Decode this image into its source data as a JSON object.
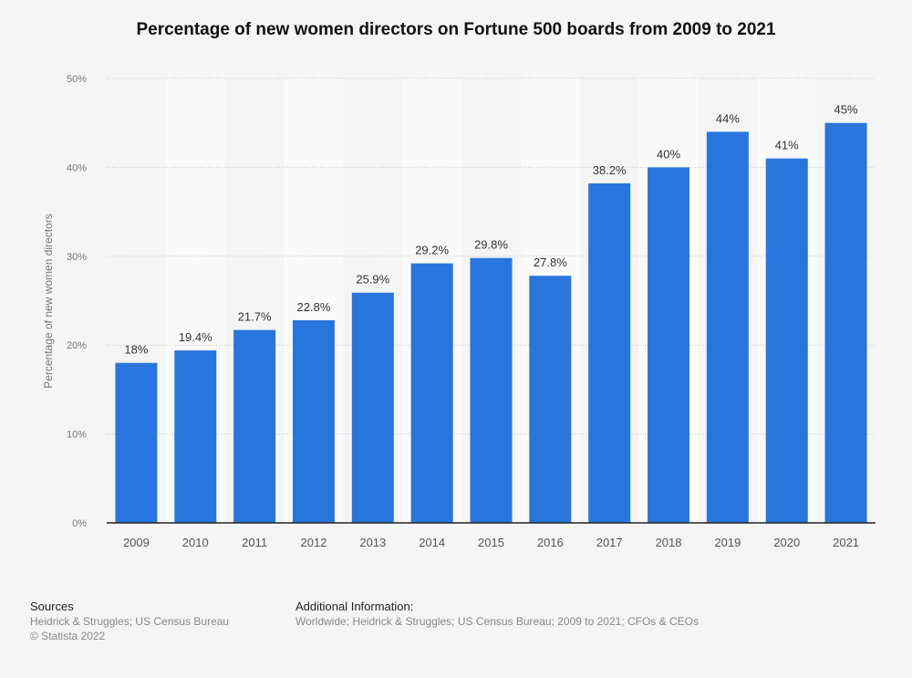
{
  "chart_data": {
    "type": "bar",
    "title": "Percentage of new women directors on Fortune 500 boards from 2009 to 2021",
    "xlabel": "",
    "ylabel": "Percentage of new women directors",
    "categories": [
      "2009",
      "2010",
      "2011",
      "2012",
      "2013",
      "2014",
      "2015",
      "2016",
      "2017",
      "2018",
      "2019",
      "2020",
      "2021"
    ],
    "values": [
      18,
      19.4,
      21.7,
      22.8,
      25.9,
      29.2,
      29.8,
      27.8,
      38.2,
      40,
      44,
      41,
      45
    ],
    "data_labels": [
      "18%",
      "19.4%",
      "21.7%",
      "22.8%",
      "25.9%",
      "29.2%",
      "29.8%",
      "27.8%",
      "38.2%",
      "40%",
      "44%",
      "41%",
      "45%"
    ],
    "ylim": [
      0,
      50
    ],
    "yticks": [
      0,
      10,
      20,
      30,
      40,
      50
    ],
    "ytick_labels": [
      "0%",
      "10%",
      "20%",
      "30%",
      "40%",
      "50%"
    ],
    "grid": true,
    "colors": {
      "bar": "#2876dd",
      "background": "#f5f5f5"
    }
  },
  "footer": {
    "sources_label": "Sources",
    "sources": "Heidrick & Struggles; US Census Bureau",
    "copyright": "© Statista 2022",
    "additional_label": "Additional Information:",
    "additional": "Worldwide; Heidrick & Struggles; US Census Bureau; 2009 to 2021; CFOs & CEOs"
  }
}
